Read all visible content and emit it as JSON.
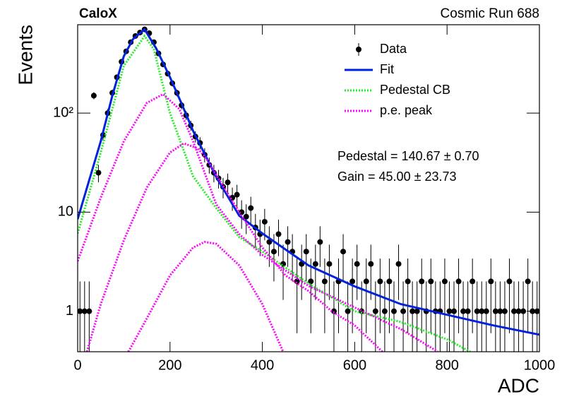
{
  "chart_data": {
    "type": "hist_fit",
    "title": "CaloX",
    "subtitle": "Cosmic Run 688",
    "x_label": "ADC",
    "y_label": "Events",
    "annotations": [
      "Pedestal = 140.67 ± 0.70",
      "Gain = 45.00 ± 23.73"
    ],
    "xlim": [
      0,
      1000
    ],
    "xticks": [
      0,
      200,
      400,
      600,
      800,
      1000
    ],
    "ylim": [
      0.39,
      780
    ],
    "log_y": true,
    "yticks": [
      1,
      10,
      {
        "value": 100,
        "label": "10²"
      }
    ],
    "legend": "upper-right",
    "series": [
      {
        "name": "Data",
        "color": "#000000",
        "style": "points",
        "x": [
          5,
          15,
          25,
          35,
          45,
          55,
          65,
          75,
          85,
          95,
          105,
          115,
          125,
          135,
          145,
          155,
          165,
          175,
          185,
          195,
          205,
          215,
          225,
          235,
          245,
          255,
          265,
          275,
          285,
          295,
          305,
          315,
          325,
          335,
          345,
          355,
          365,
          375,
          385,
          395,
          405,
          415,
          425,
          435,
          445,
          455,
          465,
          475,
          485,
          495,
          505,
          515,
          525,
          535,
          545,
          555,
          565,
          575,
          585,
          595,
          605,
          615,
          625,
          635,
          645,
          655,
          665,
          675,
          685,
          695,
          705,
          715,
          725,
          735,
          745,
          755,
          765,
          775,
          785,
          795,
          805,
          815,
          825,
          835,
          845,
          855,
          865,
          875,
          885,
          895,
          905,
          915,
          925,
          935,
          945,
          955,
          965,
          975,
          985,
          995
        ],
        "values": [
          1,
          1,
          1,
          150,
          25,
          60,
          100,
          160,
          230,
          330,
          420,
          520,
          600,
          650,
          700,
          640,
          520,
          400,
          310,
          250,
          200,
          160,
          120,
          95,
          75,
          58,
          50,
          38,
          30,
          25,
          22,
          18,
          20,
          14,
          15,
          10,
          9,
          11,
          7,
          6,
          8,
          5,
          4,
          6,
          3,
          5,
          4,
          2,
          3,
          4,
          2,
          3,
          5,
          2,
          3,
          1,
          2,
          4,
          1,
          2,
          3,
          1,
          2,
          3,
          1,
          2,
          1,
          2,
          1,
          3,
          1,
          2,
          1,
          1,
          2,
          1,
          2,
          1,
          1,
          2,
          1,
          1,
          2,
          1,
          1,
          2,
          1,
          1,
          1,
          2,
          1,
          1,
          1,
          2,
          1,
          1,
          1,
          2,
          1,
          1
        ],
        "errors": [
          1,
          1,
          1,
          12.2,
          5,
          7.7,
          10,
          12.6,
          15.2,
          18.2,
          20.5,
          22.8,
          24.5,
          25.5,
          26.5,
          25.3,
          22.8,
          20,
          17.6,
          15.8,
          14.1,
          12.6,
          11,
          9.7,
          8.7,
          7.6,
          7.1,
          6.2,
          5.5,
          5,
          4.7,
          4.2,
          4.5,
          3.7,
          3.9,
          3.2,
          3,
          3.3,
          2.6,
          2.4,
          2.8,
          2.2,
          2,
          2.4,
          1.7,
          2.2,
          2,
          1.4,
          1.7,
          2,
          1.4,
          1.7,
          2.2,
          1.4,
          1.7,
          1,
          1.4,
          2,
          1,
          1.4,
          1.7,
          1,
          1.4,
          1.7,
          1,
          1.4,
          1,
          1.4,
          1,
          1.7,
          1,
          1.4,
          1,
          1,
          1.4,
          1,
          1.4,
          1,
          1,
          1.4,
          1,
          1,
          1.4,
          1,
          1,
          1.4,
          1,
          1,
          1,
          1.4,
          1,
          1,
          1,
          1.4,
          1,
          1,
          1,
          1.4,
          1,
          1
        ]
      },
      {
        "name": "Fit",
        "color": "#0022dd",
        "style": "solid",
        "x": [
          0,
          25,
          50,
          75,
          100,
          120,
          145,
          170,
          200,
          225,
          250,
          300,
          350,
          400,
          500,
          600,
          700,
          800,
          900,
          1000
        ],
        "values": [
          8.5,
          21,
          52,
          150,
          375,
          560,
          700,
          450,
          230,
          125,
          66,
          22.7,
          9.2,
          6.1,
          2.9,
          1.78,
          1.18,
          0.92,
          0.72,
          0.58
        ]
      },
      {
        "name": "Pedestal CB",
        "color": "#22ee22",
        "style": "dotted",
        "x": [
          0,
          50,
          100,
          145,
          165,
          200,
          250,
          300,
          350,
          400,
          500,
          600,
          700,
          800,
          850
        ],
        "values": [
          6.1,
          40,
          300,
          600,
          440,
          100,
          23,
          11,
          5.6,
          4,
          1.9,
          1,
          0.78,
          0.52,
          0.39
        ]
      },
      {
        "name": "p.e. peak",
        "color": "#ff00ff",
        "style": "dotted",
        "curves": [
          {
            "x": [
              0,
              50,
              100,
              150,
              185,
              220,
              250,
              300,
              350,
              400,
              500,
              600,
              700,
              780
            ],
            "values": [
              3.2,
              14,
              52,
              127,
              155,
              110,
              52,
              12,
              6,
              3.7,
              1.8,
              1.09,
              0.66,
              0.39
            ]
          },
          {
            "x": [
              20,
              50,
              100,
              150,
              200,
              230,
              260,
              280,
              350,
              400,
              450,
              500,
              550,
              600,
              660
            ],
            "values": [
              0.39,
              1.18,
              5.2,
              17.8,
              40,
              49.5,
              44,
              34,
              10,
              4.4,
              2.3,
              1.6,
              1,
              0.72,
              0.39
            ]
          },
          {
            "x": [
              110,
              150,
              200,
              250,
              275,
              300,
              350,
              400,
              445
            ],
            "values": [
              0.39,
              0.85,
              2.3,
              4.4,
              5,
              4.8,
              2.9,
              1.18,
              0.39
            ]
          }
        ]
      }
    ]
  }
}
